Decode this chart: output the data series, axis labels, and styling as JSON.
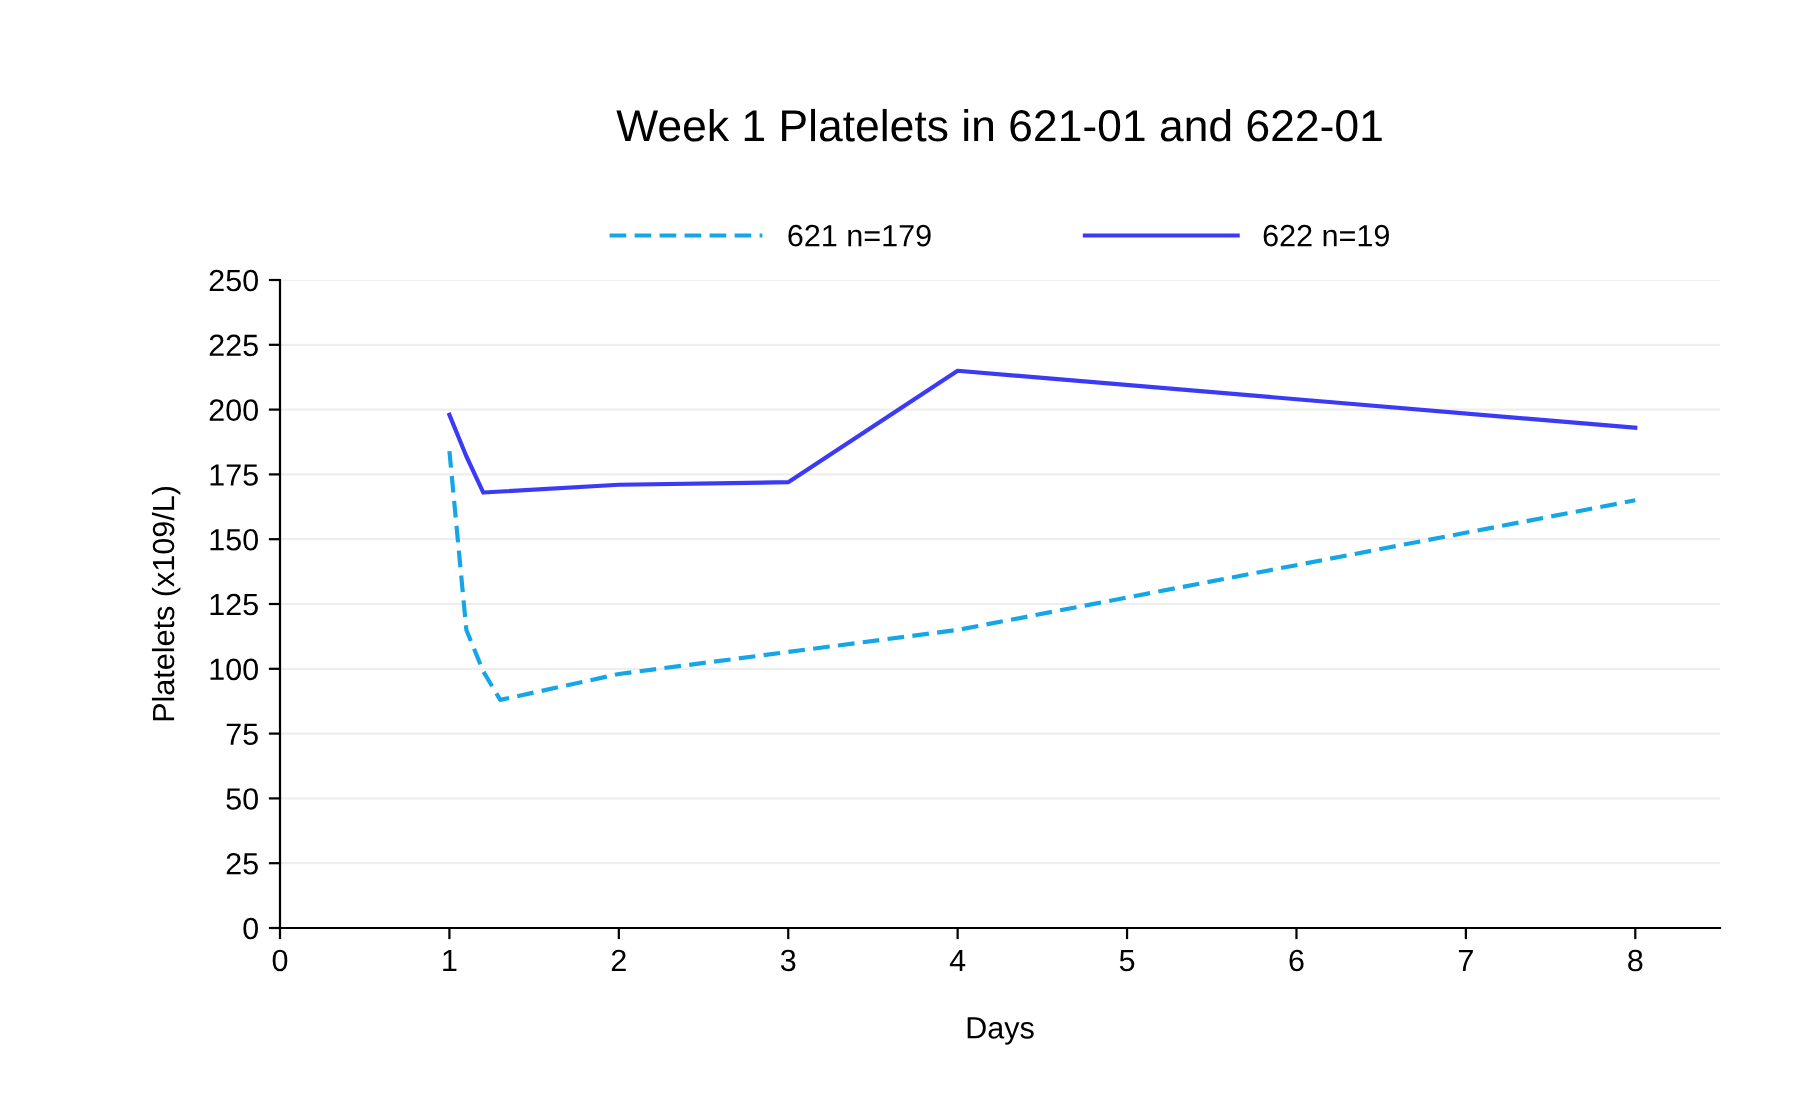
{
  "chart_data": {
    "type": "line",
    "title": "Week 1 Platelets in 621-01 and 622-01",
    "xlabel": "Days",
    "ylabel": "Platelets (x109/L)",
    "xlim": [
      0,
      8.5
    ],
    "xticks": [
      0,
      1,
      2,
      3,
      4,
      5,
      6,
      7,
      8
    ],
    "ylim": [
      0,
      250
    ],
    "yticks": [
      0,
      25,
      50,
      75,
      100,
      125,
      150,
      175,
      200,
      225,
      250
    ],
    "grid": "y",
    "legend": "top",
    "marker": "none",
    "series": [
      {
        "name": "621 n=179",
        "color": "#14a6e6",
        "line_style": "dashed",
        "x": [
          1,
          1.1,
          1.2,
          1.3,
          2,
          4,
          8
        ],
        "values": [
          184,
          115,
          99,
          88,
          98,
          115,
          165
        ]
      },
      {
        "name": "622 n=19",
        "color": "#3b3bf5",
        "line_style": "solid",
        "x": [
          1,
          1.1,
          1.2,
          2,
          3,
          4,
          8
        ],
        "values": [
          198,
          182,
          168,
          171,
          172,
          215,
          193
        ]
      }
    ]
  }
}
